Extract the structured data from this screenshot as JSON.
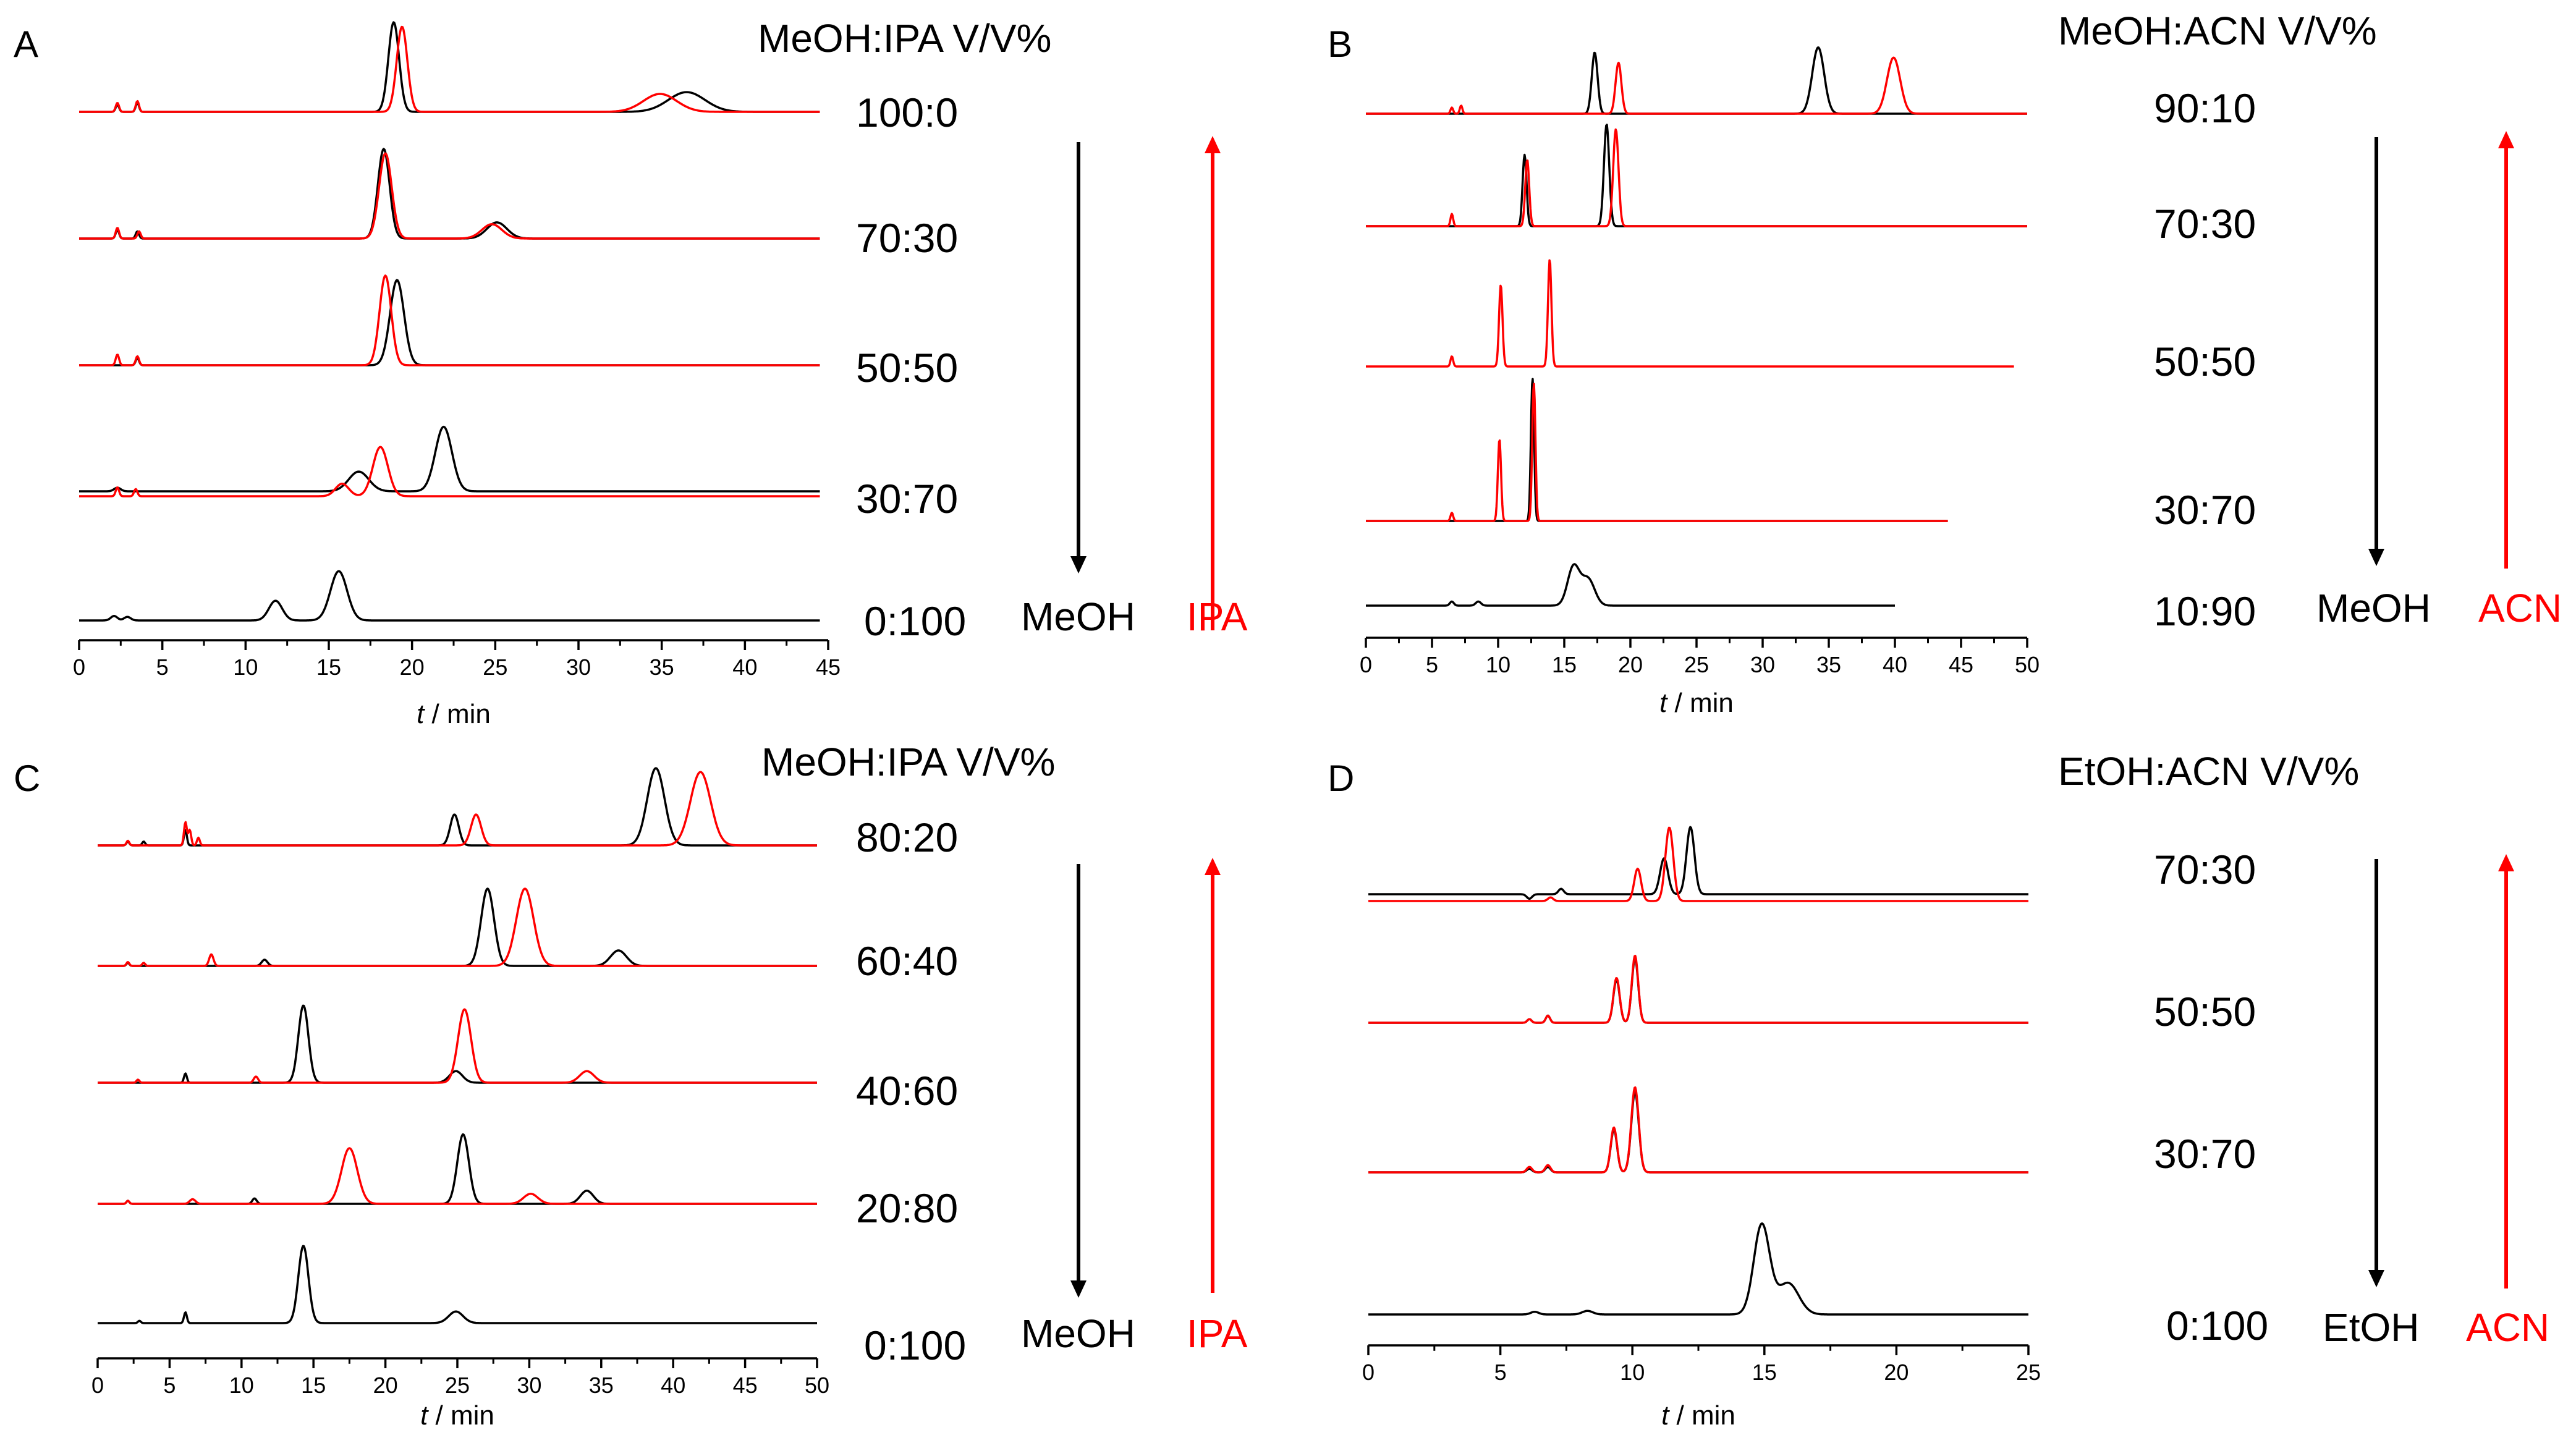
{
  "colors": {
    "black_trace": "#000000",
    "red_trace": "#ff0000",
    "axis": "#000000",
    "background": "#ffffff"
  },
  "panels": [
    {
      "id": "A",
      "letter": "A",
      "header": "MeOH:IPA V/V%",
      "ratios": [
        "100:0",
        "70:30",
        "50:50",
        "30:70",
        "0:100"
      ],
      "down_label": "MeOH",
      "up_label": "IPA",
      "axis": {
        "label_italic": "t",
        "label_rest": " / min",
        "xmin": 0,
        "xmax": 45,
        "ticks": [
          0,
          5,
          10,
          15,
          20,
          25,
          30,
          35,
          40,
          45
        ]
      }
    },
    {
      "id": "B",
      "letter": "B",
      "header": "MeOH:ACN V/V%",
      "ratios": [
        "90:10",
        "70:30",
        "50:50",
        "30:70",
        "10:90"
      ],
      "down_label": "MeOH",
      "up_label": "ACN",
      "axis": {
        "label_italic": "t",
        "label_rest": " / min",
        "xmin": 0,
        "xmax": 50,
        "ticks": [
          0,
          5,
          10,
          15,
          20,
          25,
          30,
          35,
          40,
          45,
          50
        ]
      }
    },
    {
      "id": "C",
      "letter": "C",
      "header": "MeOH:IPA V/V%",
      "ratios": [
        "80:20",
        "60:40",
        "40:60",
        "20:80",
        "0:100"
      ],
      "down_label": "MeOH",
      "up_label": "IPA",
      "axis": {
        "label_italic": "t",
        "label_rest": " / min",
        "xmin": 0,
        "xmax": 50,
        "ticks": [
          0,
          5,
          10,
          15,
          20,
          25,
          30,
          35,
          40,
          45,
          50
        ]
      }
    },
    {
      "id": "D",
      "letter": "D",
      "header": "EtOH:ACN V/V%",
      "ratios": [
        "70:30",
        "50:50",
        "30:70",
        "0:100"
      ],
      "down_label": "EtOH",
      "up_label": "ACN",
      "axis": {
        "label_italic": "t",
        "label_rest": " / min",
        "xmin": 0,
        "xmax": 25,
        "ticks": [
          0,
          5,
          10,
          15,
          20,
          25
        ]
      }
    }
  ],
  "chart_data": [
    {
      "panel": "A",
      "type": "line",
      "title": "MeOH:IPA V/V%",
      "xlabel": "t / min",
      "ylabel": "",
      "xlim": [
        0,
        45
      ],
      "traces": [
        {
          "ratio": "100:0",
          "color": "black",
          "end": 44.5,
          "peaks": [
            [
              2.3,
              0.08,
              0.1
            ],
            [
              3.5,
              0.1,
              0.1
            ],
            [
              18.9,
              1.0,
              0.32
            ],
            [
              36.5,
              0.22,
              1.1
            ]
          ]
        },
        {
          "ratio": "100:0",
          "color": "red",
          "end": 44.5,
          "peaks": [
            [
              2.3,
              0.1,
              0.1
            ],
            [
              3.5,
              0.12,
              0.1
            ],
            [
              19.4,
              0.95,
              0.32
            ],
            [
              34.9,
              0.2,
              1.0
            ]
          ]
        },
        {
          "ratio": "70:30",
          "color": "black",
          "end": 44.5,
          "peaks": [
            [
              2.3,
              0.1,
              0.1
            ],
            [
              3.5,
              0.08,
              0.1
            ],
            [
              18.3,
              1.0,
              0.35
            ],
            [
              25.1,
              0.18,
              0.6
            ]
          ]
        },
        {
          "ratio": "70:30",
          "color": "red",
          "end": 44.5,
          "peaks": [
            [
              2.3,
              0.12,
              0.1
            ],
            [
              3.6,
              0.08,
              0.1
            ],
            [
              18.4,
              0.95,
              0.38
            ],
            [
              24.8,
              0.16,
              0.6
            ]
          ]
        },
        {
          "ratio": "50:50",
          "color": "black",
          "end": 44.5,
          "peaks": [
            [
              3.5,
              0.08,
              0.1
            ],
            [
              19.1,
              0.95,
              0.42
            ]
          ]
        },
        {
          "ratio": "50:50",
          "color": "red",
          "end": 44.5,
          "peaks": [
            [
              2.3,
              0.12,
              0.1
            ],
            [
              3.5,
              0.1,
              0.1
            ],
            [
              18.4,
              1.0,
              0.35
            ]
          ]
        },
        {
          "ratio": "30:70",
          "color": "black",
          "end": 44.5,
          "peaks": [
            [
              2.3,
              0.04,
              0.2
            ],
            [
              16.8,
              0.22,
              0.6
            ],
            [
              21.9,
              0.72,
              0.5
            ]
          ]
        },
        {
          "ratio": "30:70",
          "color": "red",
          "end": 44.5,
          "peaks": [
            [
              2.3,
              0.1,
              0.1
            ],
            [
              3.4,
              0.08,
              0.1
            ],
            [
              15.8,
              0.14,
              0.4
            ],
            [
              18.1,
              0.55,
              0.45
            ]
          ]
        },
        {
          "ratio": "0:100",
          "color": "black",
          "end": 44.5,
          "peaks": [
            [
              2.1,
              0.05,
              0.2
            ],
            [
              2.9,
              0.04,
              0.2
            ],
            [
              11.8,
              0.22,
              0.4
            ],
            [
              15.6,
              0.55,
              0.5
            ]
          ]
        }
      ]
    },
    {
      "panel": "B",
      "type": "line",
      "title": "MeOH:ACN V/V%",
      "xlabel": "t / min",
      "ylabel": "",
      "xlim": [
        0,
        50
      ],
      "traces": [
        {
          "ratio": "90:10",
          "color": "black",
          "end": 50,
          "peaks": [
            [
              17.3,
              0.6,
              0.22
            ],
            [
              34.2,
              0.65,
              0.45
            ]
          ]
        },
        {
          "ratio": "90:10",
          "color": "red",
          "end": 50,
          "peaks": [
            [
              6.5,
              0.06,
              0.1
            ],
            [
              7.2,
              0.08,
              0.1
            ],
            [
              19.1,
              0.5,
              0.22
            ],
            [
              39.9,
              0.55,
              0.5
            ]
          ]
        },
        {
          "ratio": "70:30",
          "color": "black",
          "end": 50,
          "peaks": [
            [
              12.0,
              0.7,
              0.15
            ],
            [
              18.2,
              1.0,
              0.2
            ]
          ]
        },
        {
          "ratio": "70:30",
          "color": "red",
          "end": 50,
          "peaks": [
            [
              6.5,
              0.12,
              0.1
            ],
            [
              12.2,
              0.65,
              0.15
            ],
            [
              18.9,
              0.95,
              0.2
            ]
          ]
        },
        {
          "ratio": "50:50",
          "color": "red",
          "end": 49,
          "peaks": [
            [
              6.5,
              0.1,
              0.1
            ],
            [
              10.2,
              0.8,
              0.13
            ],
            [
              13.9,
              1.05,
              0.13
            ]
          ]
        },
        {
          "ratio": "30:70",
          "color": "black",
          "end": 44,
          "peaks": [
            [
              12.6,
              1.4,
              0.12
            ]
          ]
        },
        {
          "ratio": "30:70",
          "color": "red",
          "end": 44,
          "peaks": [
            [
              6.5,
              0.08,
              0.1
            ],
            [
              10.1,
              0.8,
              0.12
            ],
            [
              12.7,
              1.35,
              0.12
            ]
          ]
        },
        {
          "ratio": "10:90",
          "color": "black",
          "end": 40,
          "peaks": [
            [
              6.5,
              0.04,
              0.15
            ],
            [
              8.5,
              0.04,
              0.2
            ],
            [
              15.7,
              0.38,
              0.45
            ],
            [
              16.8,
              0.26,
              0.5
            ]
          ]
        }
      ]
    },
    {
      "panel": "C",
      "type": "line",
      "title": "MeOH:IPA V/V%",
      "xlabel": "t / min",
      "ylabel": "",
      "xlim": [
        0,
        50
      ],
      "traces": [
        {
          "ratio": "80:20",
          "color": "black",
          "end": 50,
          "peaks": [
            [
              2.1,
              0.05,
              0.1
            ],
            [
              3.2,
              0.05,
              0.1
            ],
            [
              6.1,
              0.2,
              0.1
            ],
            [
              24.8,
              0.4,
              0.3
            ],
            [
              38.8,
              1.0,
              0.6
            ]
          ]
        },
        {
          "ratio": "80:20",
          "color": "red",
          "end": 50,
          "peaks": [
            [
              2.1,
              0.06,
              0.1
            ],
            [
              6.1,
              0.3,
              0.1
            ],
            [
              6.4,
              0.2,
              0.1
            ],
            [
              7.0,
              0.1,
              0.1
            ],
            [
              26.3,
              0.4,
              0.35
            ],
            [
              41.9,
              0.95,
              0.7
            ]
          ]
        },
        {
          "ratio": "60:40",
          "color": "black",
          "end": 50,
          "peaks": [
            [
              2.1,
              0.04,
              0.1
            ],
            [
              11.6,
              0.08,
              0.2
            ],
            [
              27.1,
              1.0,
              0.45
            ],
            [
              36.2,
              0.2,
              0.55
            ]
          ]
        },
        {
          "ratio": "60:40",
          "color": "red",
          "end": 50,
          "peaks": [
            [
              2.1,
              0.05,
              0.1
            ],
            [
              3.2,
              0.04,
              0.1
            ],
            [
              7.9,
              0.15,
              0.15
            ],
            [
              29.7,
              1.0,
              0.6
            ]
          ]
        },
        {
          "ratio": "40:60",
          "color": "black",
          "end": 50,
          "peaks": [
            [
              6.1,
              0.12,
              0.1
            ],
            [
              14.3,
              1.0,
              0.35
            ],
            [
              24.9,
              0.15,
              0.45
            ]
          ]
        },
        {
          "ratio": "40:60",
          "color": "red",
          "end": 50,
          "peaks": [
            [
              2.8,
              0.04,
              0.1
            ],
            [
              11.0,
              0.08,
              0.15
            ],
            [
              25.5,
              0.95,
              0.45
            ],
            [
              34.0,
              0.15,
              0.5
            ]
          ]
        },
        {
          "ratio": "20:80",
          "color": "black",
          "end": 50,
          "peaks": [
            [
              2.1,
              0.04,
              0.1
            ],
            [
              10.9,
              0.07,
              0.15
            ],
            [
              25.4,
              0.9,
              0.4
            ],
            [
              34.0,
              0.17,
              0.45
            ]
          ]
        },
        {
          "ratio": "20:80",
          "color": "red",
          "end": 50,
          "peaks": [
            [
              2.1,
              0.04,
              0.1
            ],
            [
              6.6,
              0.06,
              0.2
            ],
            [
              17.5,
              0.72,
              0.55
            ],
            [
              30.1,
              0.13,
              0.5
            ]
          ]
        },
        {
          "ratio": "0:100",
          "color": "black",
          "end": 50,
          "peaks": [
            [
              2.9,
              0.03,
              0.1
            ],
            [
              6.1,
              0.14,
              0.1
            ],
            [
              14.3,
              1.0,
              0.35
            ],
            [
              24.9,
              0.15,
              0.5
            ]
          ]
        }
      ]
    },
    {
      "panel": "D",
      "type": "line",
      "title": "EtOH:ACN V/V%",
      "xlabel": "t / min",
      "ylabel": "",
      "xlim": [
        0,
        25
      ],
      "traces": [
        {
          "ratio": "70:30",
          "color": "black",
          "end": 25,
          "peaks": [
            [
              6.1,
              -0.05,
              0.1
            ],
            [
              7.3,
              0.06,
              0.1
            ],
            [
              11.2,
              0.4,
              0.15
            ],
            [
              12.2,
              0.75,
              0.15
            ]
          ]
        },
        {
          "ratio": "70:30",
          "color": "red",
          "end": 25,
          "peaks": [
            [
              6.9,
              0.04,
              0.1
            ],
            [
              10.2,
              0.36,
              0.13
            ],
            [
              11.4,
              0.82,
              0.15
            ]
          ]
        },
        {
          "ratio": "50:50",
          "color": "black",
          "end": 25,
          "peaks": [
            [
              6.1,
              0.04,
              0.08
            ],
            [
              6.8,
              0.08,
              0.08
            ],
            [
              9.4,
              0.48,
              0.12
            ],
            [
              10.1,
              0.72,
              0.12
            ]
          ]
        },
        {
          "ratio": "50:50",
          "color": "red",
          "end": 25,
          "peaks": [
            [
              6.1,
              0.04,
              0.08
            ],
            [
              6.8,
              0.08,
              0.08
            ],
            [
              9.4,
              0.5,
              0.12
            ],
            [
              10.1,
              0.75,
              0.12
            ]
          ]
        },
        {
          "ratio": "30:70",
          "color": "black",
          "end": 25,
          "peaks": [
            [
              6.1,
              0.04,
              0.1
            ],
            [
              6.8,
              0.06,
              0.1
            ],
            [
              9.3,
              0.48,
              0.12
            ],
            [
              10.1,
              0.9,
              0.14
            ]
          ]
        },
        {
          "ratio": "30:70",
          "color": "red",
          "end": 25,
          "peaks": [
            [
              6.1,
              0.06,
              0.1
            ],
            [
              6.8,
              0.08,
              0.1
            ],
            [
              9.3,
              0.5,
              0.12
            ],
            [
              10.1,
              0.95,
              0.14
            ]
          ]
        },
        {
          "ratio": "0:100",
          "color": "black",
          "end": 25,
          "peaks": [
            [
              6.3,
              0.03,
              0.15
            ],
            [
              8.3,
              0.04,
              0.2
            ],
            [
              14.9,
              1.0,
              0.3
            ],
            [
              15.9,
              0.35,
              0.4
            ]
          ]
        }
      ]
    }
  ]
}
